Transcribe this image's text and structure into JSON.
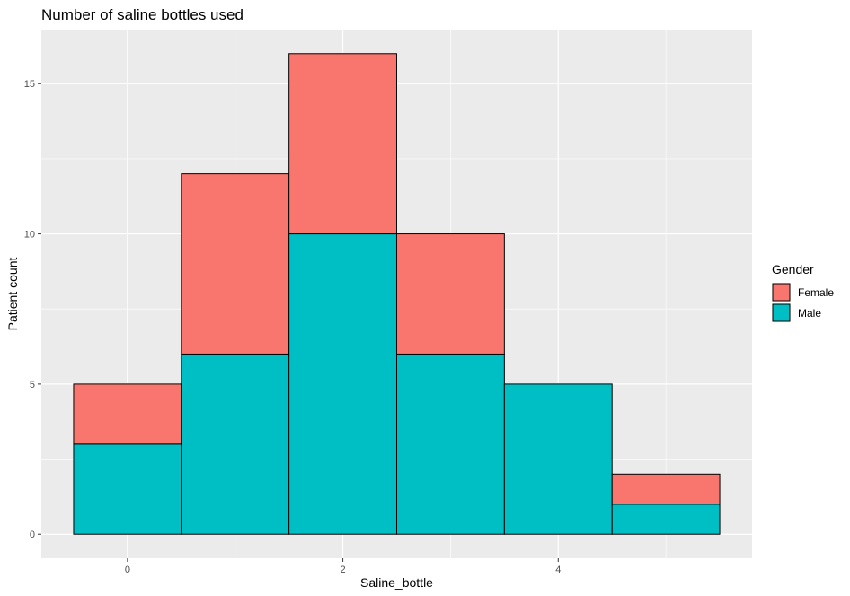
{
  "chart_data": {
    "type": "bar",
    "title": "Number of saline bottles used",
    "xlabel": "Saline_bottle",
    "ylabel": "Patient count",
    "x": [
      0,
      1,
      2,
      3,
      4,
      5
    ],
    "xticks": [
      0,
      2,
      4
    ],
    "yticks": [
      0,
      5,
      10,
      15
    ],
    "xlim": [
      -0.5,
      5.5
    ],
    "ylim": [
      0,
      16
    ],
    "stacked": true,
    "grid": true,
    "legend": {
      "title": "Gender",
      "position": "right"
    },
    "series": [
      {
        "name": "Female",
        "color": "#F8766D",
        "values": [
          2,
          6,
          6,
          4,
          0,
          1
        ]
      },
      {
        "name": "Male",
        "color": "#00BFC4",
        "values": [
          3,
          6,
          10,
          6,
          5,
          1
        ]
      }
    ]
  }
}
